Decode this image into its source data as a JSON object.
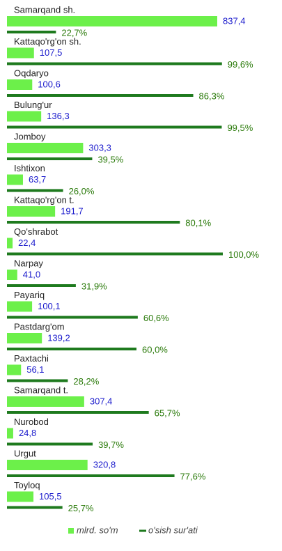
{
  "chart_data": {
    "type": "bar",
    "orientation": "horizontal",
    "categories": [
      "Samarqand sh.",
      "Kattaqo'rg'on sh.",
      "Oqdaryo",
      "Bulung'ur",
      "Jomboy",
      "Ishtixon",
      "Kattaqo'rg'on t.",
      "Qo'shrabot",
      "Narpay",
      "Payariq",
      "Pastdarg'om",
      "Paxtachi",
      "Samarqand t.",
      "Nurobod",
      "Urgut",
      "Toyloq"
    ],
    "series": [
      {
        "name": "mlrd. so'm",
        "color": "#6cf04a",
        "label_color": "#1a1acc",
        "values": [
          837.4,
          107.5,
          100.6,
          136.3,
          303.3,
          63.7,
          191.7,
          22.4,
          41.0,
          100.1,
          139.2,
          56.1,
          307.4,
          24.8,
          320.8,
          105.5
        ],
        "value_labels": [
          "837,4",
          "107,5",
          "100,6",
          "136,3",
          "303,3",
          "63,7",
          "191,7",
          "22,4",
          "41,0",
          "100,1",
          "139,2",
          "56,1",
          "307,4",
          "24,8",
          "320,8",
          "105,5"
        ]
      },
      {
        "name": "o'sish sur'ati",
        "color": "#1e7a1e",
        "label_color": "#2a7a0a",
        "values": [
          22.7,
          99.6,
          86.3,
          99.5,
          39.5,
          26.0,
          80.1,
          100.0,
          31.9,
          60.6,
          60.0,
          28.2,
          65.7,
          39.7,
          77.6,
          25.7
        ],
        "value_labels": [
          "22,7%",
          "99,6%",
          "86,3%",
          "99,5%",
          "39,5%",
          "26,0%",
          "80,1%",
          "100,0%",
          "31,9%",
          "60,6%",
          "60,0%",
          "28,2%",
          "65,7%",
          "39,7%",
          "77,6%",
          "25,7%"
        ]
      }
    ],
    "legend": "bottom"
  }
}
